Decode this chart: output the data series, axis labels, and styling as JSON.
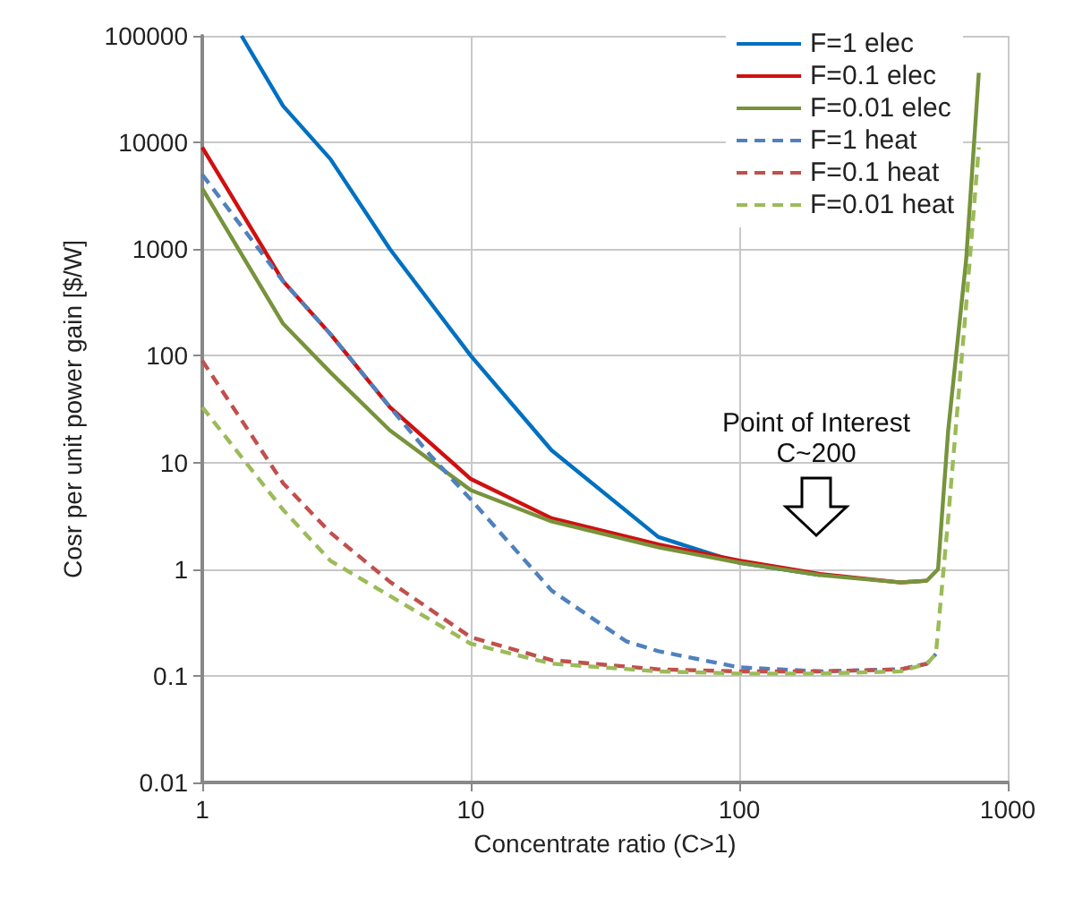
{
  "chart_data": {
    "type": "line",
    "xlabel": "Concentrate ratio (C>1)",
    "ylabel": "Cosr per unit power gain [$/W]",
    "log": "xy",
    "grid": true,
    "legend": "top right",
    "marker": "none",
    "xlim": [
      1,
      1000
    ],
    "xticks": [
      1,
      10,
      100,
      1000
    ],
    "ylim": [
      0.01,
      100000
    ],
    "yticks": [
      0.01,
      0.1,
      1,
      10,
      100,
      1000,
      10000,
      100000
    ],
    "annotations": [
      "Point of Interest\nC~200"
    ],
    "series": [
      {
        "name": "F=1 elec",
        "color": "#0070c0",
        "line_style": "solid",
        "x": [
          1.4,
          2,
          3,
          5,
          10,
          20,
          50,
          100,
          200
        ],
        "values": [
          100000,
          22000,
          7000,
          1000,
          100,
          13,
          2,
          1.15,
          0.88
        ]
      },
      {
        "name": "F=0.1 elec",
        "color": "#d01010",
        "line_style": "solid",
        "x": [
          1,
          2,
          3,
          5,
          10,
          20,
          50,
          100,
          200,
          400,
          500
        ],
        "values": [
          9000,
          500,
          160,
          33,
          7,
          3,
          1.7,
          1.2,
          0.9,
          0.75,
          0.78
        ]
      },
      {
        "name": "F=0.01 elec",
        "color": "#77933c",
        "line_style": "solid",
        "x": [
          1,
          2,
          3,
          5,
          10,
          20,
          50,
          100,
          200,
          400,
          500,
          550,
          600,
          700,
          780
        ],
        "values": [
          3700,
          200,
          70,
          20,
          5.5,
          2.8,
          1.6,
          1.15,
          0.88,
          0.75,
          0.78,
          1,
          20,
          800,
          45000
        ]
      },
      {
        "name": "F=1 heat",
        "color": "#4f81bd",
        "line_style": "dashed",
        "x": [
          1,
          2,
          3,
          5,
          7,
          10,
          20,
          38,
          50,
          100,
          200,
          400,
          500,
          540
        ],
        "values": [
          5000,
          500,
          160,
          33,
          12,
          4.5,
          0.63,
          0.21,
          0.17,
          0.12,
          0.11,
          0.115,
          0.13,
          0.16
        ]
      },
      {
        "name": "F=0.1 heat",
        "color": "#c0504d",
        "line_style": "dashed",
        "x": [
          1,
          2,
          3,
          5,
          10,
          20,
          50,
          100,
          200,
          400,
          500
        ],
        "values": [
          90,
          6.4,
          2.2,
          0.76,
          0.23,
          0.14,
          0.115,
          0.11,
          0.11,
          0.115,
          0.13
        ]
      },
      {
        "name": "F=0.01 heat",
        "color": "#9bbb59",
        "line_style": "dashed",
        "x": [
          1,
          2,
          3,
          5,
          10,
          20,
          50,
          100,
          200,
          400,
          500,
          540,
          600,
          700,
          780
        ],
        "values": [
          33,
          3.6,
          1.2,
          0.56,
          0.2,
          0.13,
          0.11,
          0.105,
          0.105,
          0.11,
          0.13,
          0.16,
          3,
          300,
          9000
        ]
      }
    ]
  }
}
